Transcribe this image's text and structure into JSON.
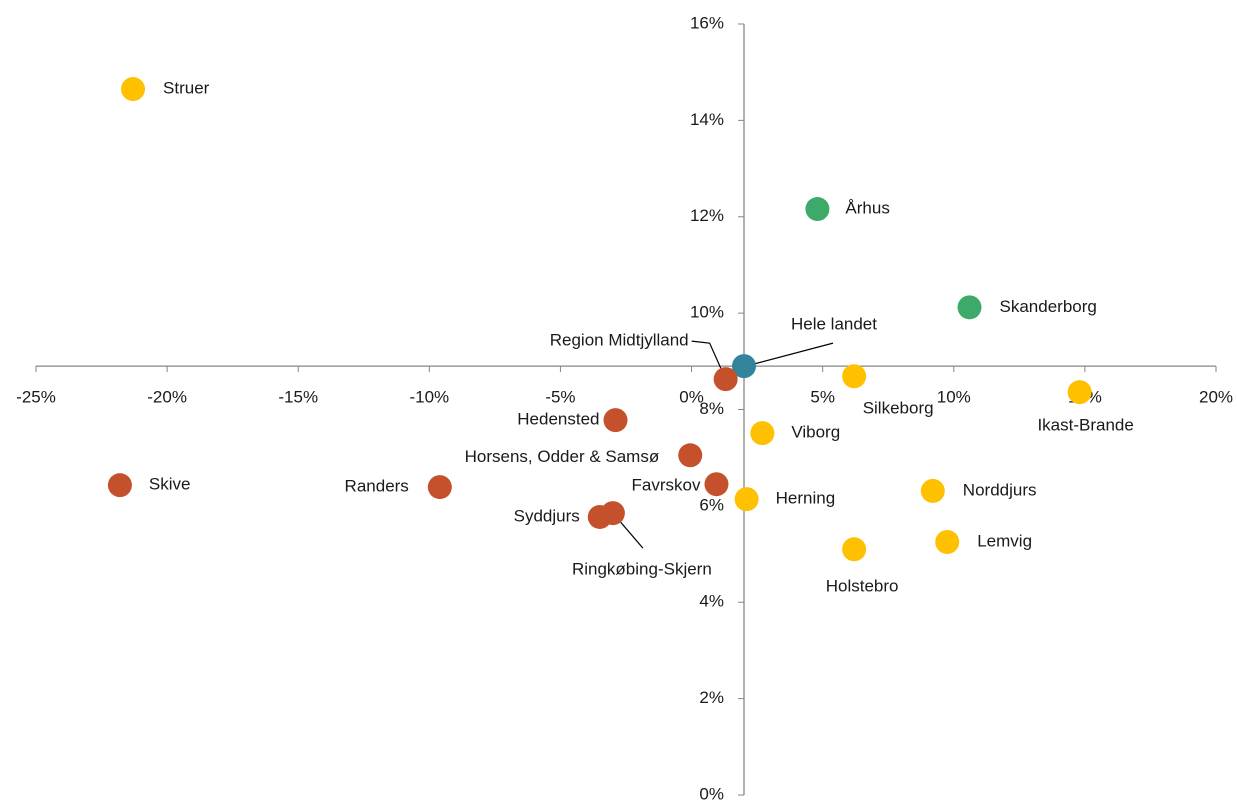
{
  "chart_data": {
    "type": "scatter",
    "xlim": [
      -25,
      20
    ],
    "ylim": [
      0,
      16
    ],
    "x_axis_at": 8.9,
    "y_axis_at": 2,
    "xticks": [
      {
        "value": -25,
        "label": "-25%"
      },
      {
        "value": -20,
        "label": "-20%"
      },
      {
        "value": -15,
        "label": "-15%"
      },
      {
        "value": -10,
        "label": "-10%"
      },
      {
        "value": -5,
        "label": "-5%"
      },
      {
        "value": 0,
        "label": "0%"
      },
      {
        "value": 5,
        "label": "5%"
      },
      {
        "value": 10,
        "label": "10%"
      },
      {
        "value": 15,
        "label": "15%"
      },
      {
        "value": 20,
        "label": "20%"
      }
    ],
    "yticks": [
      {
        "value": 0,
        "label": "0%"
      },
      {
        "value": 2,
        "label": "2%"
      },
      {
        "value": 4,
        "label": "4%"
      },
      {
        "value": 6,
        "label": "6%"
      },
      {
        "value": 8,
        "label": "8%"
      },
      {
        "value": 10,
        "label": "10%"
      },
      {
        "value": 12,
        "label": "12%"
      },
      {
        "value": 14,
        "label": "14%"
      },
      {
        "value": 16,
        "label": "16%"
      }
    ],
    "points": [
      {
        "label": "Struer",
        "x": -21.3,
        "y": 14.65,
        "color": "#FFC000"
      },
      {
        "label": "Århus",
        "x": 4.8,
        "y": 12.16,
        "color": "#3DAA6A"
      },
      {
        "label": "Skanderborg",
        "x": 10.6,
        "y": 10.12,
        "color": "#3DAA6A"
      },
      {
        "label": "Hele landet",
        "x": 2.0,
        "y": 8.9,
        "color": "#31849B"
      },
      {
        "label": "Region Midtjylland",
        "x": 1.3,
        "y": 8.63,
        "color": "#C4502C"
      },
      {
        "label": "Silkeborg",
        "x": 6.2,
        "y": 8.69,
        "color": "#FFC000"
      },
      {
        "label": "Ikast-Brande",
        "x": 14.8,
        "y": 8.36,
        "color": "#FFC000"
      },
      {
        "label": "Hedensted",
        "x": -2.9,
        "y": 7.78,
        "color": "#C4502C"
      },
      {
        "label": "Viborg",
        "x": 2.7,
        "y": 7.51,
        "color": "#FFC000"
      },
      {
        "label": "Horsens, Odder & Samsø",
        "x": -0.05,
        "y": 7.05,
        "color": "#C4502C"
      },
      {
        "label": "Skive",
        "x": -21.8,
        "y": 6.43,
        "color": "#C4502C"
      },
      {
        "label": "Randers",
        "x": -9.6,
        "y": 6.39,
        "color": "#C4502C"
      },
      {
        "label": "Favrskov",
        "x": 0.95,
        "y": 6.45,
        "color": "#C4502C"
      },
      {
        "label": "Herning",
        "x": 2.1,
        "y": 6.14,
        "color": "#FFC000"
      },
      {
        "label": "Norddjurs",
        "x": 9.2,
        "y": 6.31,
        "color": "#FFC000"
      },
      {
        "label": "Syddjurs",
        "x": -3.5,
        "y": 5.77,
        "color": "#C4502C"
      },
      {
        "label": "Ringkøbing-Skjern",
        "x": -3.0,
        "y": 5.85,
        "color": "#C4502C"
      },
      {
        "label": "Lemvig",
        "x": 9.75,
        "y": 5.25,
        "color": "#FFC000"
      },
      {
        "label": "Holstebro",
        "x": 6.2,
        "y": 5.1,
        "color": "#FFC000"
      }
    ]
  }
}
